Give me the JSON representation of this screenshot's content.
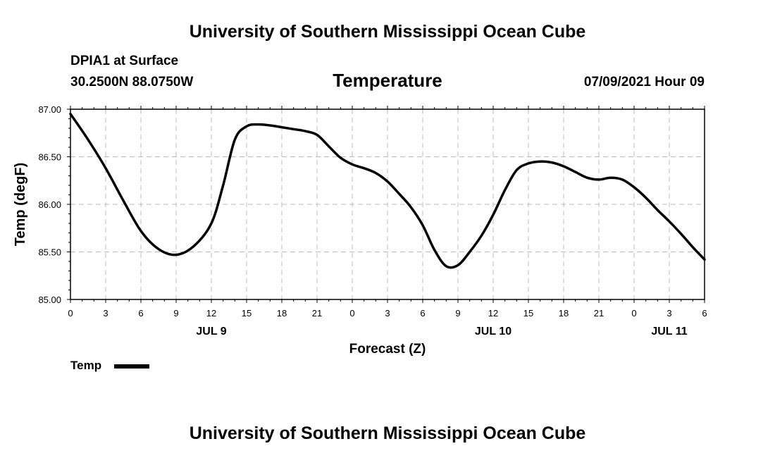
{
  "header": {
    "title_top": "University of Southern Mississippi Ocean Cube",
    "title_bottom": "University of Southern Mississippi Ocean Cube",
    "station": "DPIA1 at Surface",
    "coords": "30.2500N  88.0750W",
    "timestamp": "07/09/2021 Hour 09"
  },
  "chart_data": {
    "type": "line",
    "title": "Temperature",
    "xlabel": "Forecast (Z)",
    "ylabel": "Temp (degF)",
    "ylim": [
      85.0,
      87.0
    ],
    "yticks": [
      "85.00",
      "85.50",
      "86.00",
      "86.50",
      "87.00"
    ],
    "xlim": [
      0,
      54
    ],
    "xticks": [
      "0",
      "3",
      "6",
      "9",
      "12",
      "15",
      "18",
      "21",
      "0",
      "3",
      "6",
      "9",
      "12",
      "15",
      "18",
      "21",
      "0",
      "3",
      "6"
    ],
    "day_labels": [
      {
        "label": "JUL 9",
        "hour": 12
      },
      {
        "label": "JUL 10",
        "hour": 36
      },
      {
        "label": "JUL 11",
        "hour": 51
      }
    ],
    "grid": true,
    "legend": "bottom-left",
    "series": [
      {
        "name": "Temp",
        "color": "#000000",
        "x": [
          0,
          1.5,
          3,
          4.5,
          6,
          7.5,
          9,
          10.5,
          12,
          13,
          14,
          15,
          16,
          17,
          18,
          19,
          20,
          21,
          22,
          23,
          24,
          25,
          26,
          27,
          28,
          29,
          30,
          31,
          32,
          33,
          34,
          35,
          36,
          37,
          38,
          39,
          40,
          41,
          42,
          43,
          44,
          45,
          46,
          47,
          48,
          49,
          50,
          51,
          52,
          53,
          54
        ],
        "y": [
          86.95,
          86.68,
          86.38,
          86.04,
          85.72,
          85.53,
          85.47,
          85.56,
          85.8,
          86.2,
          86.68,
          86.82,
          86.84,
          86.83,
          86.81,
          86.79,
          86.77,
          86.73,
          86.61,
          86.49,
          86.42,
          86.38,
          86.33,
          86.24,
          86.11,
          85.97,
          85.78,
          85.52,
          85.35,
          85.36,
          85.5,
          85.67,
          85.89,
          86.15,
          86.36,
          86.43,
          86.45,
          86.44,
          86.4,
          86.34,
          86.28,
          86.26,
          86.28,
          86.26,
          86.18,
          86.07,
          85.94,
          85.82,
          85.69,
          85.55,
          85.42
        ]
      }
    ]
  }
}
